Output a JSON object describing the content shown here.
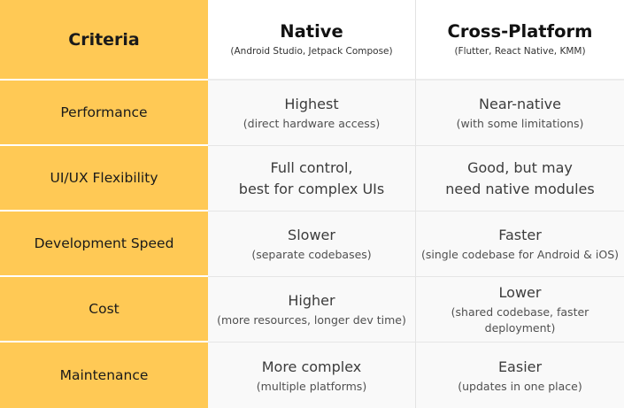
{
  "header": {
    "criteria": "Criteria",
    "native": {
      "title": "Native",
      "subtitle": "(Android Studio, Jetpack Compose)"
    },
    "cross": {
      "title": "Cross-Platform",
      "subtitle": "(Flutter, React Native, KMM)"
    }
  },
  "rows": [
    {
      "criterion": "Performance",
      "native": {
        "main": "Highest",
        "sub": "(direct hardware access)"
      },
      "cross": {
        "main": "Near-native",
        "sub": "(with some limitations)"
      }
    },
    {
      "criterion": "UI/UX Flexibility",
      "native": {
        "line1": "Full control,",
        "line2": "best for complex UIs"
      },
      "cross": {
        "line1": "Good, but may",
        "line2": "need native modules"
      }
    },
    {
      "criterion": "Development Speed",
      "native": {
        "main": "Slower",
        "sub": "(separate codebases)"
      },
      "cross": {
        "main": "Faster",
        "sub": "(single codebase for Android & iOS)"
      }
    },
    {
      "criterion": "Cost",
      "native": {
        "main": "Higher",
        "sub": "(more resources, longer dev time)"
      },
      "cross": {
        "main": "Lower",
        "sub": "(shared codebase, faster deployment)"
      }
    },
    {
      "criterion": "Maintenance",
      "native": {
        "main": "More complex",
        "sub": "(multiple platforms)"
      },
      "cross": {
        "main": "Easier",
        "sub": "(updates in one place)"
      }
    }
  ],
  "colors": {
    "criteria_bg": "#ffc955",
    "row_bg": "#f9f9f9",
    "text": "#3c3c3c"
  }
}
